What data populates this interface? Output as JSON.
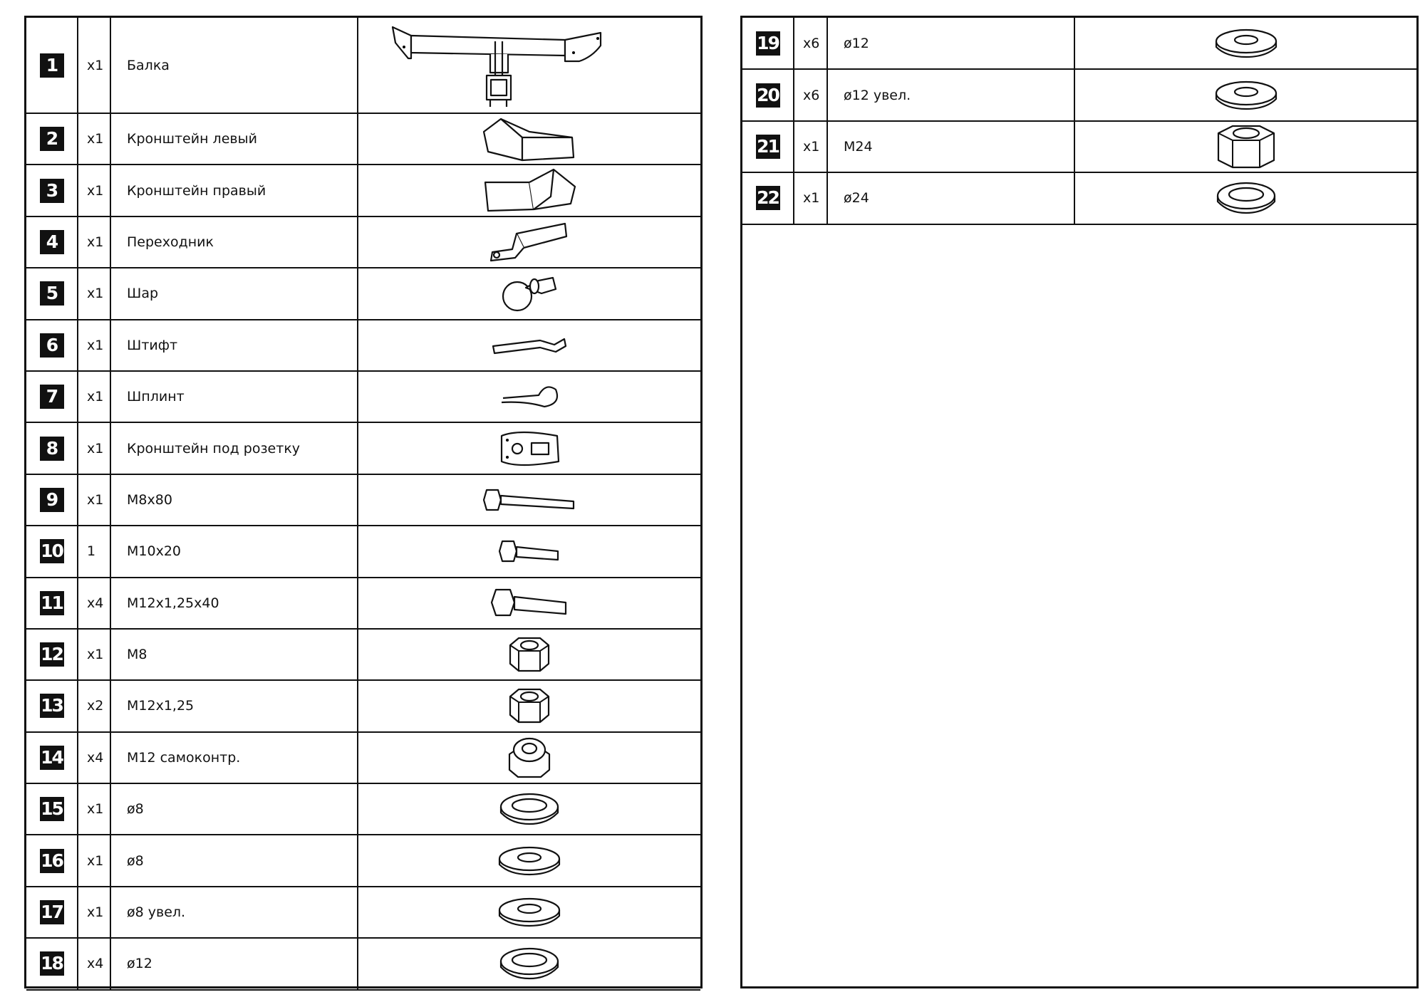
{
  "left_table": {
    "rows": [
      {
        "num": "1",
        "qty": "x1",
        "name": "Балка",
        "icon": "beam-icon"
      },
      {
        "num": "2",
        "qty": "x1",
        "name": "Кронштейн левый",
        "icon": "bracket-left-icon"
      },
      {
        "num": "3",
        "qty": "x1",
        "name": "Кронштейн правый",
        "icon": "bracket-right-icon"
      },
      {
        "num": "4",
        "qty": "x1",
        "name": "Переходник",
        "icon": "adapter-icon"
      },
      {
        "num": "5",
        "qty": "x1",
        "name": "Шар",
        "icon": "tow-ball-icon"
      },
      {
        "num": "6",
        "qty": "x1",
        "name": "Штифт",
        "icon": "pin-icon"
      },
      {
        "num": "7",
        "qty": "x1",
        "name": "Шплинт",
        "icon": "clip-icon"
      },
      {
        "num": "8",
        "qty": "x1",
        "name": "Кронштейн под розетку",
        "icon": "socket-plate-icon"
      },
      {
        "num": "9",
        "qty": "x1",
        "name": "M8x80",
        "icon": "bolt-long-icon"
      },
      {
        "num": "10",
        "qty": "1",
        "name": "M10x20",
        "icon": "bolt-short-icon"
      },
      {
        "num": "11",
        "qty": "x4",
        "name": "M12x1,25x40",
        "icon": "bolt-medium-icon"
      },
      {
        "num": "12",
        "qty": "x1",
        "name": "M8",
        "icon": "nut-icon"
      },
      {
        "num": "13",
        "qty": "x2",
        "name": "M12x1,25",
        "icon": "nut-icon"
      },
      {
        "num": "14",
        "qty": "x4",
        "name": "M12 самоконтр.",
        "icon": "lock-nut-icon"
      },
      {
        "num": "15",
        "qty": "x1",
        "name": "ø8",
        "icon": "spring-washer-icon"
      },
      {
        "num": "16",
        "qty": "x1",
        "name": "ø8",
        "icon": "flat-washer-icon"
      },
      {
        "num": "17",
        "qty": "x1",
        "name": "ø8 увел.",
        "icon": "flat-washer-icon"
      },
      {
        "num": "18",
        "qty": "x4",
        "name": "ø12",
        "icon": "spring-washer-icon"
      }
    ]
  },
  "right_table": {
    "rows": [
      {
        "num": "19",
        "qty": "x6",
        "name": "ø12",
        "icon": "flat-washer-icon"
      },
      {
        "num": "20",
        "qty": "x6",
        "name": "ø12 увел.",
        "icon": "flat-washer-icon"
      },
      {
        "num": "21",
        "qty": "x1",
        "name": "M24",
        "icon": "tall-nut-icon"
      },
      {
        "num": "22",
        "qty": "x1",
        "name": "ø24",
        "icon": "spring-washer-icon"
      }
    ]
  }
}
